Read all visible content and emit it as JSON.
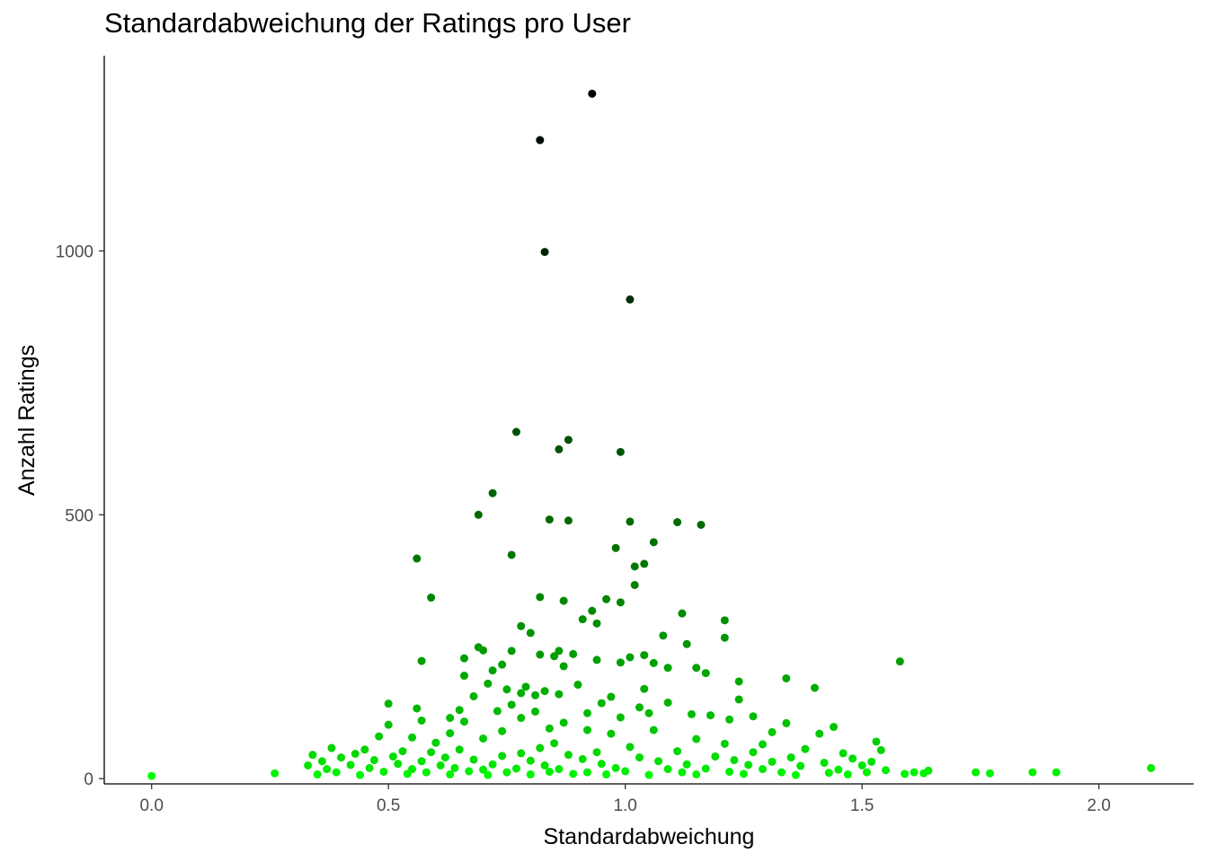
{
  "chart_data": {
    "type": "scatter",
    "title": "Standardabweichung der Ratings pro User",
    "xlabel": "Standardabweichung",
    "ylabel": "Anzahl Ratings",
    "xlim": [
      -0.1,
      2.2
    ],
    "ylim": [
      -10,
      1370
    ],
    "x_ticks": [
      0.0,
      0.5,
      1.0,
      1.5,
      2.0
    ],
    "x_tick_labels": [
      "0.0",
      "0.5",
      "1.0",
      "1.5",
      "2.0"
    ],
    "y_ticks": [
      0,
      500,
      1000
    ],
    "y_tick_labels": [
      "0",
      "500",
      "1000"
    ],
    "grid": false,
    "legend": "none",
    "color_scale": {
      "low": "#00ff00",
      "high": "#000000",
      "mapped_to": "y"
    },
    "points": [
      [
        0.93,
        1298
      ],
      [
        0.82,
        1210
      ],
      [
        0.83,
        998
      ],
      [
        1.01,
        908
      ],
      [
        0.77,
        657
      ],
      [
        0.88,
        642
      ],
      [
        0.86,
        624
      ],
      [
        0.99,
        619
      ],
      [
        0.72,
        541
      ],
      [
        0.69,
        500
      ],
      [
        0.84,
        491
      ],
      [
        0.88,
        489
      ],
      [
        1.01,
        487
      ],
      [
        1.11,
        486
      ],
      [
        1.16,
        481
      ],
      [
        1.06,
        448
      ],
      [
        0.98,
        437
      ],
      [
        0.76,
        424
      ],
      [
        0.56,
        417
      ],
      [
        1.04,
        407
      ],
      [
        1.02,
        402
      ],
      [
        1.02,
        367
      ],
      [
        0.59,
        343
      ],
      [
        0.82,
        344
      ],
      [
        0.87,
        337
      ],
      [
        0.96,
        340
      ],
      [
        0.99,
        334
      ],
      [
        0.93,
        318
      ],
      [
        1.12,
        313
      ],
      [
        0.91,
        302
      ],
      [
        1.21,
        300
      ],
      [
        0.94,
        294
      ],
      [
        0.78,
        289
      ],
      [
        0.8,
        276
      ],
      [
        1.08,
        271
      ],
      [
        1.21,
        267
      ],
      [
        1.13,
        255
      ],
      [
        0.69,
        249
      ],
      [
        0.7,
        243
      ],
      [
        0.76,
        242
      ],
      [
        0.86,
        242
      ],
      [
        0.89,
        236
      ],
      [
        0.85,
        232
      ],
      [
        1.04,
        234
      ],
      [
        0.82,
        235
      ],
      [
        0.66,
        228
      ],
      [
        1.58,
        222
      ],
      [
        0.57,
        223
      ],
      [
        0.94,
        225
      ],
      [
        1.01,
        230
      ],
      [
        0.99,
        220
      ],
      [
        1.06,
        219
      ],
      [
        0.74,
        216
      ],
      [
        0.87,
        213
      ],
      [
        1.09,
        210
      ],
      [
        1.15,
        210
      ],
      [
        0.72,
        205
      ],
      [
        1.17,
        200
      ],
      [
        0.66,
        195
      ],
      [
        1.34,
        190
      ],
      [
        1.24,
        184
      ],
      [
        0.71,
        180
      ],
      [
        0.9,
        178
      ],
      [
        0.79,
        174
      ],
      [
        0.75,
        169
      ],
      [
        1.04,
        170
      ],
      [
        0.83,
        166
      ],
      [
        1.4,
        172
      ],
      [
        0.81,
        158
      ],
      [
        0.78,
        162
      ],
      [
        0.86,
        160
      ],
      [
        0.68,
        156
      ],
      [
        0.97,
        155
      ],
      [
        1.24,
        150
      ],
      [
        0.5,
        142
      ],
      [
        0.95,
        143
      ],
      [
        1.09,
        144
      ],
      [
        0.76,
        140
      ],
      [
        1.03,
        135
      ],
      [
        0.56,
        133
      ],
      [
        0.65,
        130
      ],
      [
        0.73,
        128
      ],
      [
        0.81,
        127
      ],
      [
        0.92,
        124
      ],
      [
        1.05,
        124
      ],
      [
        1.14,
        122
      ],
      [
        1.18,
        120
      ],
      [
        0.63,
        115
      ],
      [
        0.78,
        115
      ],
      [
        0.99,
        116
      ],
      [
        1.27,
        118
      ],
      [
        1.22,
        112
      ],
      [
        1.34,
        105
      ],
      [
        0.57,
        110
      ],
      [
        0.66,
        108
      ],
      [
        0.87,
        106
      ],
      [
        0.5,
        102
      ],
      [
        1.44,
        98
      ],
      [
        0.84,
        95
      ],
      [
        0.92,
        92
      ],
      [
        1.06,
        92
      ],
      [
        0.74,
        90
      ],
      [
        1.31,
        88
      ],
      [
        0.63,
        86
      ],
      [
        0.97,
        85
      ],
      [
        1.41,
        85
      ],
      [
        0.48,
        80
      ],
      [
        0.55,
        78
      ],
      [
        0.7,
        76
      ],
      [
        1.15,
        75
      ],
      [
        1.53,
        70
      ],
      [
        0.6,
        68
      ],
      [
        0.85,
        67
      ],
      [
        1.21,
        66
      ],
      [
        1.29,
        65
      ],
      [
        0.38,
        58
      ],
      [
        0.45,
        55
      ],
      [
        0.53,
        52
      ],
      [
        0.65,
        55
      ],
      [
        0.82,
        58
      ],
      [
        1.01,
        60
      ],
      [
        1.38,
        56
      ],
      [
        1.54,
        54
      ],
      [
        0.34,
        45
      ],
      [
        0.43,
        47
      ],
      [
        0.59,
        50
      ],
      [
        0.78,
        48
      ],
      [
        0.94,
        50
      ],
      [
        1.11,
        52
      ],
      [
        1.27,
        50
      ],
      [
        1.46,
        48
      ],
      [
        0.4,
        40
      ],
      [
        0.51,
        42
      ],
      [
        0.62,
        40
      ],
      [
        0.74,
        43
      ],
      [
        0.88,
        45
      ],
      [
        1.03,
        40
      ],
      [
        1.19,
        42
      ],
      [
        1.35,
        40
      ],
      [
        1.48,
        38
      ],
      [
        0.36,
        33
      ],
      [
        0.47,
        35
      ],
      [
        0.57,
        33
      ],
      [
        0.68,
        36
      ],
      [
        0.8,
        34
      ],
      [
        0.91,
        37
      ],
      [
        1.07,
        33
      ],
      [
        1.23,
        35
      ],
      [
        1.31,
        32
      ],
      [
        1.42,
        30
      ],
      [
        1.52,
        32
      ],
      [
        0.33,
        25
      ],
      [
        0.42,
        26
      ],
      [
        0.52,
        28
      ],
      [
        0.61,
        25
      ],
      [
        0.72,
        27
      ],
      [
        0.83,
        25
      ],
      [
        0.95,
        28
      ],
      [
        1.13,
        27
      ],
      [
        1.26,
        26
      ],
      [
        1.37,
        24
      ],
      [
        1.5,
        25
      ],
      [
        0.37,
        18
      ],
      [
        0.46,
        20
      ],
      [
        0.55,
        18
      ],
      [
        0.64,
        20
      ],
      [
        0.7,
        17
      ],
      [
        0.77,
        19
      ],
      [
        0.86,
        18
      ],
      [
        0.98,
        20
      ],
      [
        1.09,
        18
      ],
      [
        1.17,
        19
      ],
      [
        1.29,
        18
      ],
      [
        1.45,
        17
      ],
      [
        1.55,
        16
      ],
      [
        0.39,
        12
      ],
      [
        0.49,
        13
      ],
      [
        0.58,
        12
      ],
      [
        0.67,
        14
      ],
      [
        0.75,
        12
      ],
      [
        0.84,
        13
      ],
      [
        0.92,
        12
      ],
      [
        1.0,
        14
      ],
      [
        1.12,
        12
      ],
      [
        1.22,
        13
      ],
      [
        1.33,
        12
      ],
      [
        1.43,
        11
      ],
      [
        1.51,
        12
      ],
      [
        0.35,
        8
      ],
      [
        0.44,
        7
      ],
      [
        0.54,
        9
      ],
      [
        0.63,
        8
      ],
      [
        0.71,
        7
      ],
      [
        0.8,
        8
      ],
      [
        0.89,
        9
      ],
      [
        0.96,
        8
      ],
      [
        1.05,
        7
      ],
      [
        1.15,
        8
      ],
      [
        1.25,
        9
      ],
      [
        1.36,
        7
      ],
      [
        1.47,
        8
      ],
      [
        0.0,
        5
      ],
      [
        0.26,
        10
      ],
      [
        1.59,
        9
      ],
      [
        1.61,
        12
      ],
      [
        1.63,
        10
      ],
      [
        1.64,
        15
      ],
      [
        1.74,
        12
      ],
      [
        1.77,
        10
      ],
      [
        1.86,
        12
      ],
      [
        1.91,
        12
      ],
      [
        2.11,
        20
      ]
    ]
  }
}
